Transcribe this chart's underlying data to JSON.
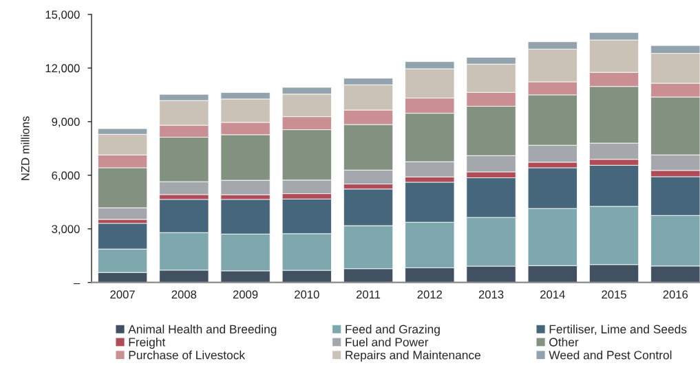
{
  "chart_data": {
    "type": "bar",
    "stacked": true,
    "ylabel": "NZD millions",
    "categories": [
      "2007",
      "2008",
      "2009",
      "2010",
      "2011",
      "2012",
      "2013",
      "2014",
      "2015",
      "2016"
    ],
    "series": [
      {
        "name": "Animal Health and Breeding",
        "color": "#415162",
        "values": [
          560,
          690,
          650,
          680,
          770,
          820,
          910,
          940,
          1000,
          920
        ]
      },
      {
        "name": "Feed and Grazing",
        "color": "#7fa8ae",
        "values": [
          1310,
          2100,
          2060,
          2050,
          2410,
          2550,
          2730,
          3200,
          3260,
          2830
        ]
      },
      {
        "name": "Fertiliser, Lime and Seeds",
        "color": "#46677b",
        "values": [
          1440,
          1860,
          1940,
          1940,
          2050,
          2240,
          2220,
          2280,
          2300,
          2170
        ]
      },
      {
        "name": "Freight",
        "color": "#b04c58",
        "values": [
          220,
          270,
          260,
          300,
          280,
          300,
          330,
          310,
          330,
          350
        ]
      },
      {
        "name": "Fuel and Power",
        "color": "#a4a8ac",
        "values": [
          650,
          720,
          810,
          760,
          780,
          850,
          910,
          950,
          910,
          870
        ]
      },
      {
        "name": "Other",
        "color": "#839181",
        "values": [
          2240,
          2490,
          2550,
          2820,
          2550,
          2710,
          2760,
          2820,
          3170,
          3240
        ]
      },
      {
        "name": "Purchase of Livestock",
        "color": "#c98f93",
        "values": [
          720,
          670,
          690,
          730,
          810,
          850,
          780,
          730,
          790,
          770
        ]
      },
      {
        "name": "Repairs and Maintenance",
        "color": "#cbc2b7",
        "values": [
          1150,
          1380,
          1310,
          1260,
          1410,
          1640,
          1580,
          1830,
          1810,
          1670
        ]
      },
      {
        "name": "Weed and Pest Control",
        "color": "#93a3ae",
        "values": [
          320,
          350,
          360,
          380,
          370,
          400,
          380,
          410,
          420,
          440
        ]
      }
    ],
    "ylim": [
      0,
      15000
    ],
    "yticks": [
      {
        "value": 0,
        "label": "–"
      },
      {
        "value": 3000,
        "label": "3,000"
      },
      {
        "value": 6000,
        "label": "6,000"
      },
      {
        "value": 9000,
        "label": "9,000"
      },
      {
        "value": 12000,
        "label": "12,000"
      },
      {
        "value": 15000,
        "label": "15,000"
      }
    ],
    "legend": "bottom"
  }
}
